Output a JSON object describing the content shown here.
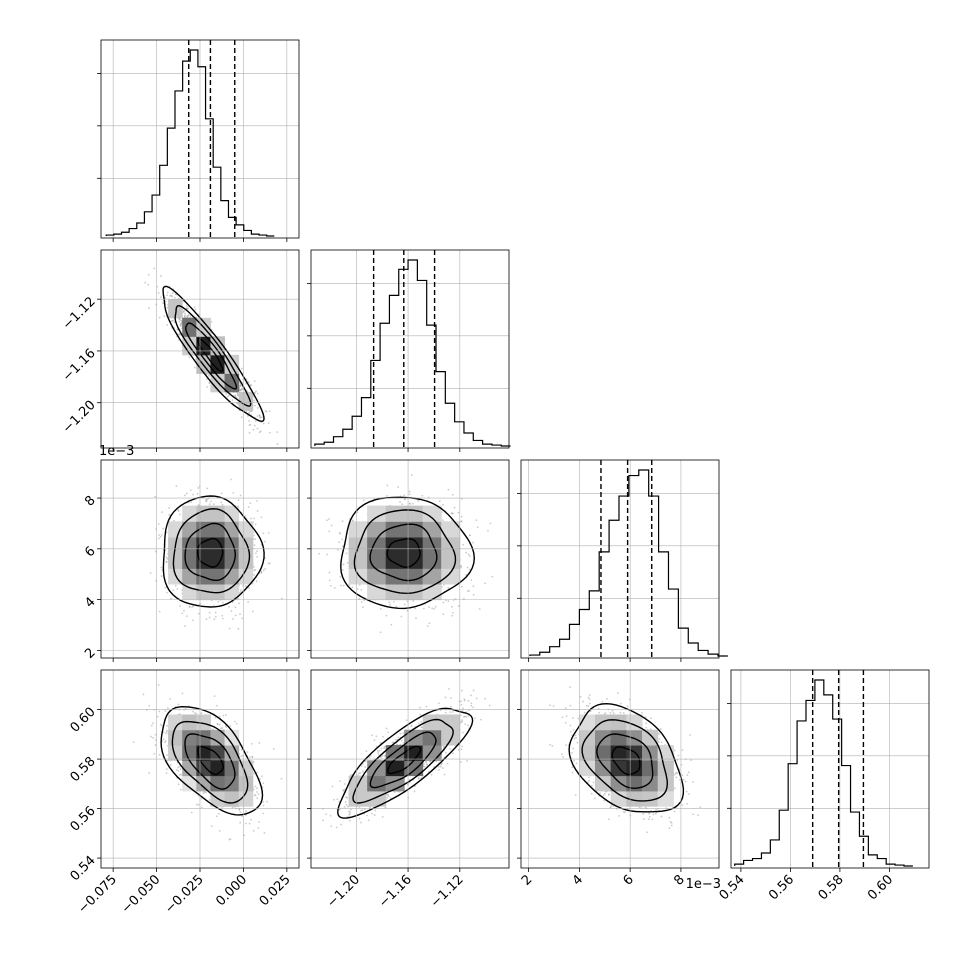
{
  "chart_data": {
    "type": "corner",
    "grid": true,
    "parameters": [
      {
        "range": [
          -0.082,
          0.032
        ],
        "ticks": [
          -0.075,
          -0.05,
          -0.025,
          0.0,
          0.025
        ],
        "tick_labels": [
          "−0.075",
          "−0.050",
          "−0.025",
          "0.000",
          "0.025"
        ],
        "offset_label": "",
        "quantiles": [
          -0.0315,
          -0.019,
          -0.005
        ],
        "histogram": {
          "start": -0.079,
          "step": 0.0044,
          "counts": [
            0.5,
            1,
            2,
            4,
            7,
            13,
            22,
            38,
            58,
            78,
            94,
            100,
            91,
            63,
            37,
            19,
            10,
            6,
            3,
            1,
            0.5,
            0
          ]
        }
      },
      {
        "range": [
          -1.235,
          -1.082
        ],
        "ticks": [
          -1.2,
          -1.16,
          -1.12
        ],
        "tick_labels": [
          "−1.20",
          "−1.16",
          "−1.12"
        ],
        "offset_label": "",
        "quantiles": [
          -1.1866,
          -1.1633,
          -1.1395
        ],
        "histogram": {
          "start": -1.232,
          "step": 0.0072,
          "counts": [
            1,
            2,
            5,
            9,
            16,
            26,
            46,
            66,
            81,
            95,
            100,
            89,
            65,
            40,
            23,
            13,
            7,
            3,
            1,
            0.5,
            0
          ]
        }
      },
      {
        "range": [
          1.7,
          9.5
        ],
        "ticks": [
          2,
          4,
          6,
          8
        ],
        "tick_labels": [
          "2",
          "4",
          "6",
          "8"
        ],
        "offset_label": "1e−3",
        "quantiles": [
          4.85,
          5.9,
          6.85
        ],
        "histogram": {
          "start": 2.05,
          "step": 0.39,
          "counts": [
            0.5,
            2,
            5,
            9,
            17,
            25,
            35,
            56,
            73,
            86,
            97,
            100,
            86,
            56,
            36,
            15,
            7,
            3,
            1,
            0
          ]
        }
      },
      {
        "range": [
          0.536,
          0.616
        ],
        "ticks": [
          0.54,
          0.56,
          0.58,
          0.6
        ],
        "tick_labels": [
          "0.54",
          "0.56",
          "0.58",
          "0.60"
        ],
        "offset_label": "",
        "quantiles": [
          0.569,
          0.5795,
          0.5895
        ],
        "histogram": {
          "start": 0.5375,
          "step": 0.0036,
          "counts": [
            1,
            3,
            4,
            7,
            14,
            30,
            55,
            78,
            89,
            100,
            92,
            79,
            54,
            29,
            16,
            6,
            4,
            1,
            0.5,
            0
          ]
        }
      }
    ],
    "pairs": [
      {
        "row": 1,
        "col": 0,
        "mean": [
          -0.019,
          -1.163
        ],
        "sd": [
          0.0125,
          0.022
        ],
        "rho": -0.92
      },
      {
        "row": 2,
        "col": 0,
        "mean": [
          -0.019,
          5.85
        ],
        "sd": [
          0.0125,
          0.95
        ],
        "rho": 0.0
      },
      {
        "row": 2,
        "col": 1,
        "mean": [
          -1.163,
          5.85
        ],
        "sd": [
          0.022,
          0.95
        ],
        "rho": 0.0
      },
      {
        "row": 3,
        "col": 0,
        "mean": [
          -0.019,
          0.5795
        ],
        "sd": [
          0.0125,
          0.0095
        ],
        "rho": -0.55
      },
      {
        "row": 3,
        "col": 1,
        "mean": [
          -1.163,
          0.5795
        ],
        "sd": [
          0.022,
          0.0095
        ],
        "rho": 0.8
      },
      {
        "row": 3,
        "col": 2,
        "mean": [
          5.85,
          0.5795
        ],
        "sd": [
          0.95,
          0.0095
        ],
        "rho": -0.35
      }
    ],
    "contour_levels_sigma": [
      0.5,
      1.0,
      1.5,
      2.0
    ]
  }
}
